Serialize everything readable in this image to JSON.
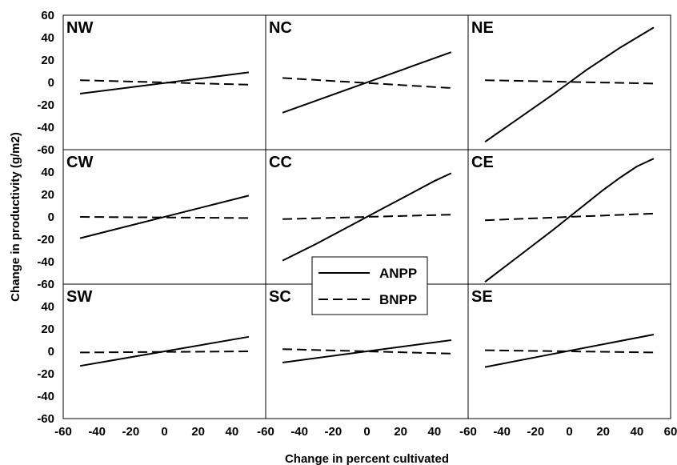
{
  "chart_data": {
    "type": "line",
    "xlabel": "Change in percent cultivated",
    "ylabel": "Change in productivity (g/m2)",
    "xlim": [
      -60,
      60
    ],
    "ylim": [
      -60,
      60
    ],
    "x_ticks": [
      "-60",
      "-40",
      "-20",
      "0",
      "20",
      "40",
      "-60",
      "-40",
      "-20",
      "0",
      "20",
      "40",
      "-60",
      "-40",
      "-20",
      "0",
      "20",
      "40",
      "60"
    ],
    "y_ticks": [
      "60",
      "40",
      "20",
      "0",
      "-20",
      "-40",
      "-60",
      "40",
      "20",
      "0",
      "-20",
      "-40",
      "-60",
      "40",
      "20",
      "0",
      "-20",
      "-40",
      "-60"
    ],
    "legend": {
      "placement": "center",
      "entries": [
        {
          "name": "ANPP",
          "style": "solid"
        },
        {
          "name": "BNPP",
          "style": "dashed"
        }
      ]
    },
    "panels": [
      {
        "label": "NW",
        "series": [
          {
            "name": "ANPP",
            "x": [
              -50,
              50
            ],
            "y": [
              -10,
              9
            ]
          },
          {
            "name": "BNPP",
            "x": [
              -50,
              50
            ],
            "y": [
              2,
              -2
            ]
          }
        ]
      },
      {
        "label": "NC",
        "series": [
          {
            "name": "ANPP",
            "x": [
              -50,
              50
            ],
            "y": [
              -27,
              27
            ]
          },
          {
            "name": "BNPP",
            "x": [
              -50,
              50
            ],
            "y": [
              4,
              -5
            ]
          }
        ]
      },
      {
        "label": "NE",
        "series": [
          {
            "name": "ANPP",
            "x": [
              -50,
              -30,
              -10,
              0,
              10,
              20,
              30,
              40,
              50
            ],
            "y": [
              -53,
              -32,
              -11,
              0,
              11,
              21,
              31,
              40,
              49
            ]
          },
          {
            "name": "BNPP",
            "x": [
              -50,
              50
            ],
            "y": [
              2,
              -1
            ]
          }
        ]
      },
      {
        "label": "CW",
        "series": [
          {
            "name": "ANPP",
            "x": [
              -50,
              50
            ],
            "y": [
              -19,
              19
            ]
          },
          {
            "name": "BNPP",
            "x": [
              -50,
              50
            ],
            "y": [
              0,
              -1
            ]
          }
        ]
      },
      {
        "label": "CC",
        "series": [
          {
            "name": "ANPP",
            "x": [
              -50,
              -30,
              -10,
              0,
              10,
              20,
              30,
              40,
              50
            ],
            "y": [
              -39,
              -24,
              -8,
              0,
              8,
              16,
              24,
              32,
              39
            ]
          },
          {
            "name": "BNPP",
            "x": [
              -50,
              50
            ],
            "y": [
              -2,
              2
            ]
          }
        ]
      },
      {
        "label": "CE",
        "series": [
          {
            "name": "ANPP",
            "x": [
              -50,
              -30,
              -10,
              0,
              10,
              20,
              30,
              40,
              50
            ],
            "y": [
              -58,
              -35,
              -12,
              0,
              12,
              24,
              35,
              45,
              52
            ]
          },
          {
            "name": "BNPP",
            "x": [
              -50,
              50
            ],
            "y": [
              -3,
              3
            ]
          }
        ]
      },
      {
        "label": "SW",
        "series": [
          {
            "name": "ANPP",
            "x": [
              -50,
              50
            ],
            "y": [
              -13,
              13
            ]
          },
          {
            "name": "BNPP",
            "x": [
              -50,
              50
            ],
            "y": [
              -1,
              0
            ]
          }
        ]
      },
      {
        "label": "SC",
        "series": [
          {
            "name": "ANPP",
            "x": [
              -50,
              50
            ],
            "y": [
              -10,
              10
            ]
          },
          {
            "name": "BNPP",
            "x": [
              -50,
              50
            ],
            "y": [
              2,
              -2
            ]
          }
        ]
      },
      {
        "label": "SE",
        "series": [
          {
            "name": "ANPP",
            "x": [
              -50,
              50
            ],
            "y": [
              -14,
              15
            ]
          },
          {
            "name": "BNPP",
            "x": [
              -50,
              50
            ],
            "y": [
              1,
              -1
            ]
          }
        ]
      }
    ]
  }
}
